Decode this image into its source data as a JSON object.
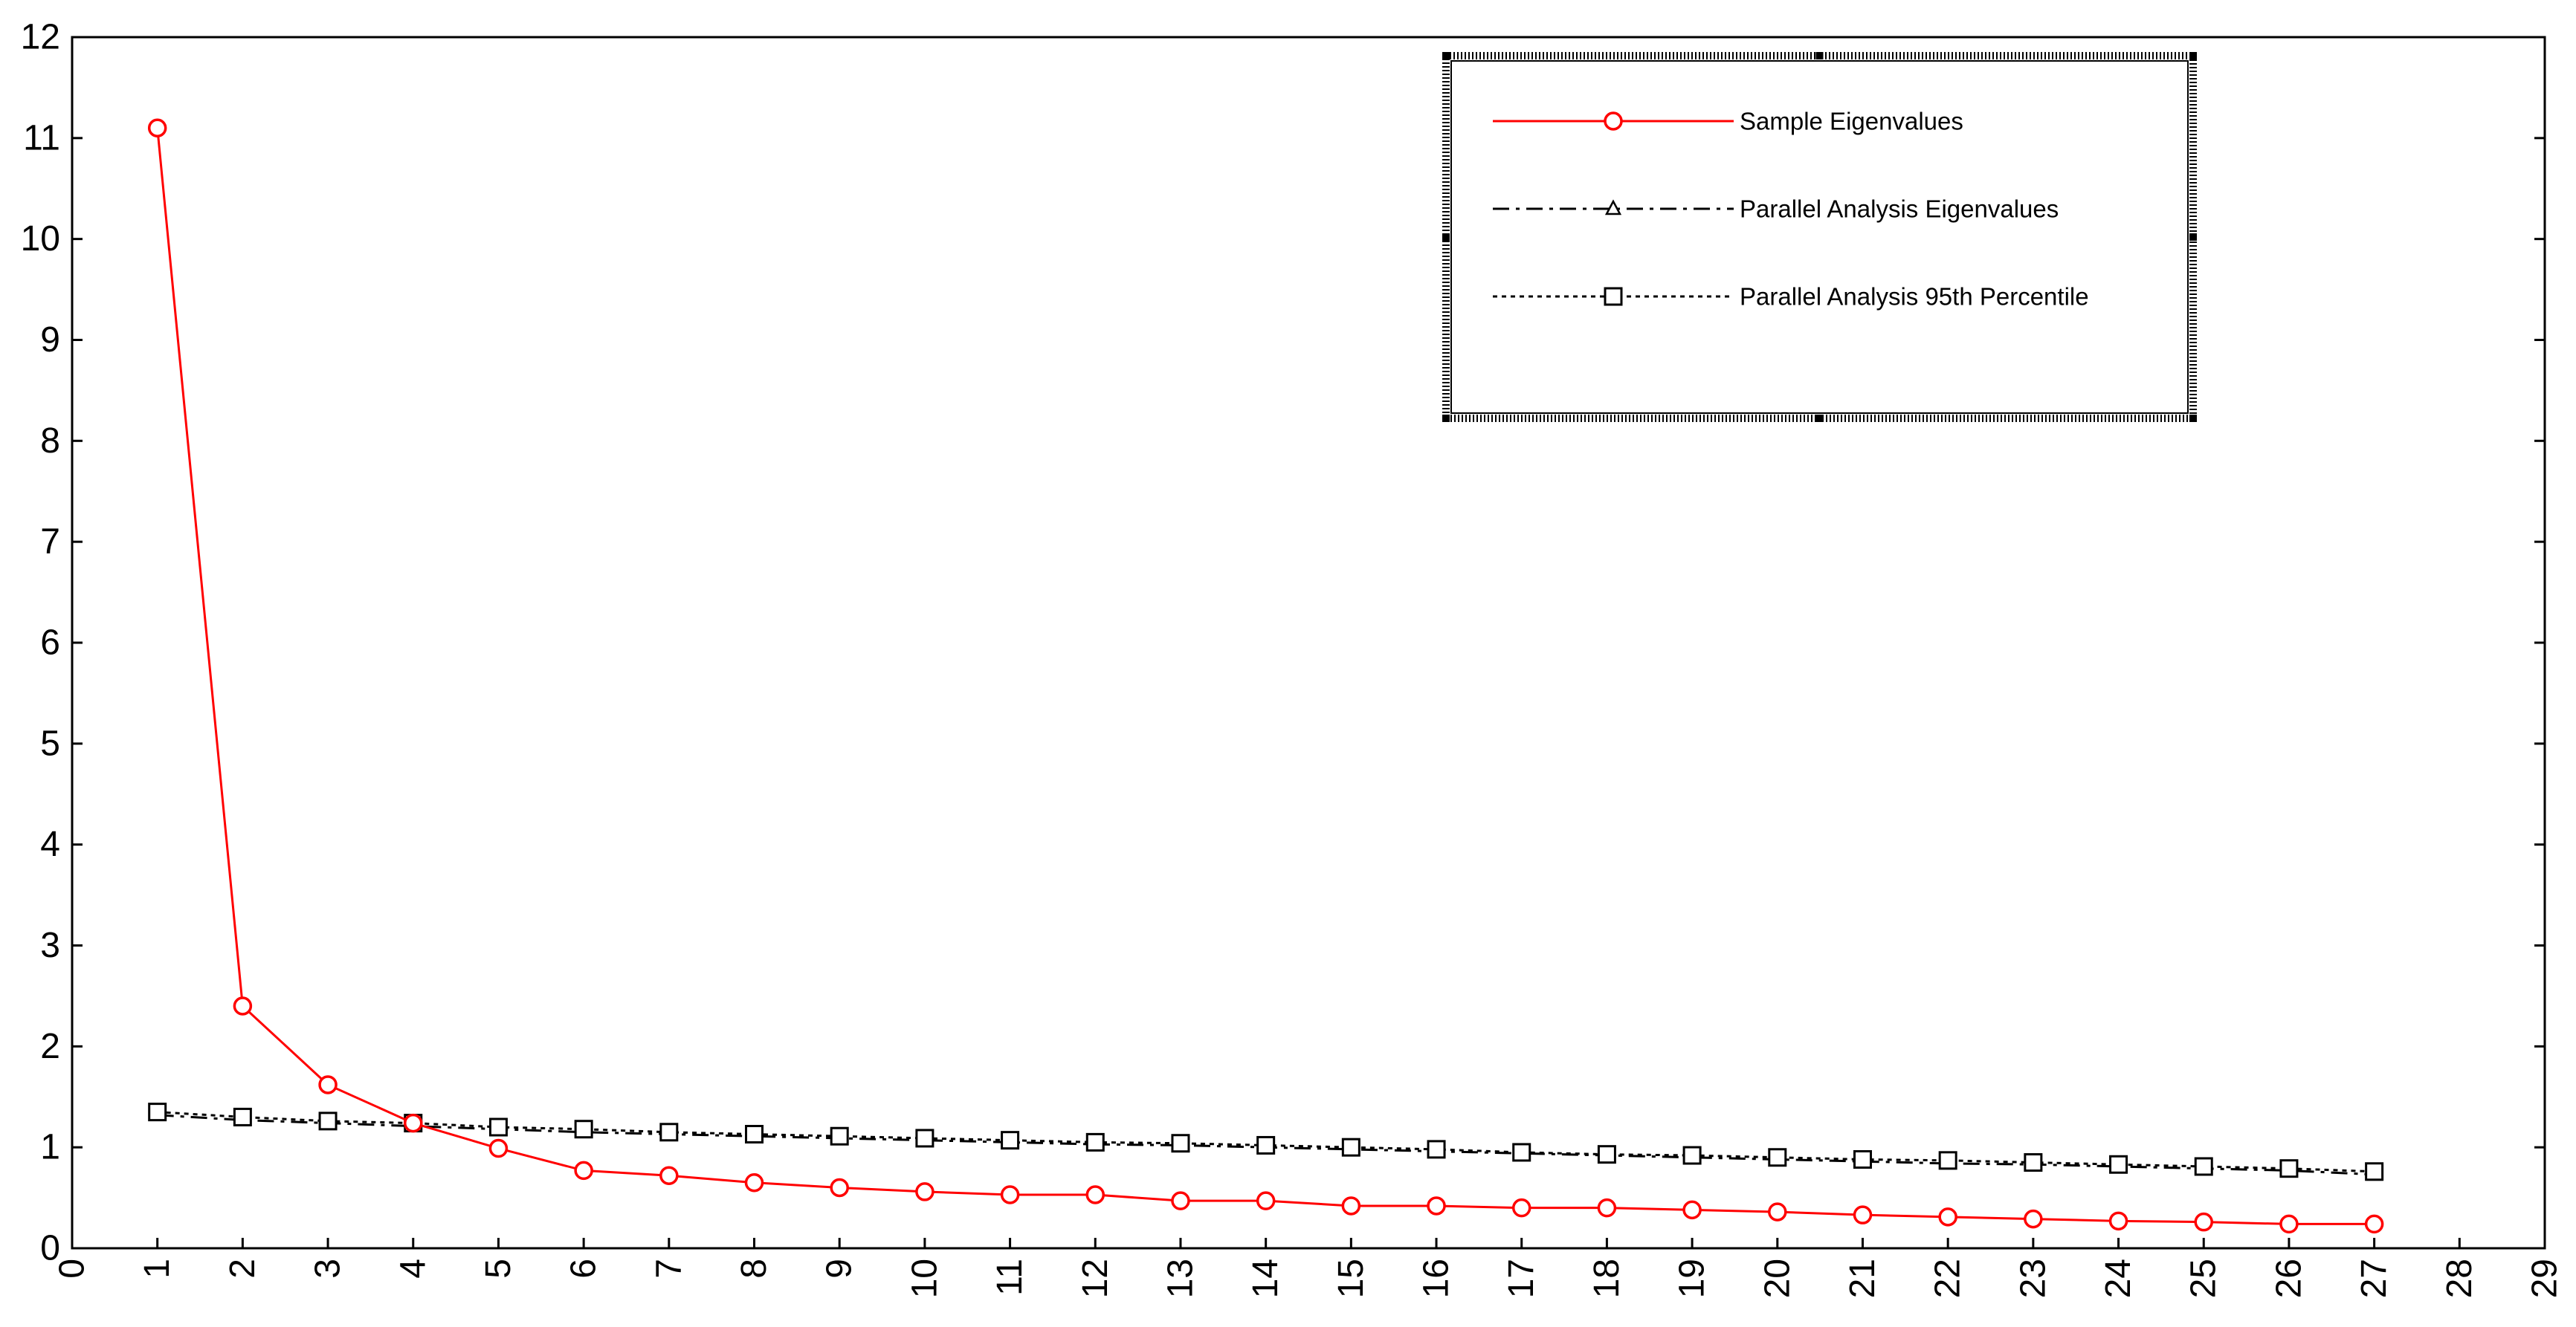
{
  "chart_data": {
    "type": "line",
    "title": "",
    "xlabel": "",
    "ylabel": "",
    "xlim": [
      0,
      29
    ],
    "ylim": [
      0,
      12
    ],
    "x_ticks": [
      0,
      1,
      2,
      3,
      4,
      5,
      6,
      7,
      8,
      9,
      10,
      11,
      12,
      13,
      14,
      15,
      16,
      17,
      18,
      19,
      20,
      21,
      22,
      23,
      24,
      25,
      26,
      27,
      28,
      29
    ],
    "y_ticks": [
      0,
      1,
      2,
      3,
      4,
      5,
      6,
      7,
      8,
      9,
      10,
      11,
      12
    ],
    "x_tick_labels": [
      "0",
      "1",
      "2",
      "3",
      "4",
      "5",
      "6",
      "7",
      "8",
      "9",
      "10",
      "11",
      "12",
      "13",
      "14",
      "15",
      "16",
      "17",
      "18",
      "19",
      "20",
      "21",
      "22",
      "23",
      "24",
      "25",
      "26",
      "27",
      "28",
      "29"
    ],
    "y_tick_labels": [
      "0",
      "1",
      "2",
      "3",
      "4",
      "5",
      "6",
      "7",
      "8",
      "9",
      "10",
      "11",
      "12"
    ],
    "x_tick_orientation": "vertical",
    "grid": false,
    "legend_position": "top-right",
    "x": [
      1,
      2,
      3,
      4,
      5,
      6,
      7,
      8,
      9,
      10,
      11,
      12,
      13,
      14,
      15,
      16,
      17,
      18,
      19,
      20,
      21,
      22,
      23,
      24,
      25,
      26,
      27
    ],
    "series": [
      {
        "name": "Sample Eigenvalues",
        "color": "#ff0000",
        "line_style": "solid",
        "marker": "circle",
        "values": [
          11.1,
          2.4,
          1.62,
          1.24,
          0.99,
          0.77,
          0.72,
          0.65,
          0.6,
          0.56,
          0.53,
          0.53,
          0.47,
          0.47,
          0.42,
          0.42,
          0.4,
          0.4,
          0.38,
          0.36,
          0.33,
          0.31,
          0.29,
          0.27,
          0.26,
          0.24,
          0.24
        ]
      },
      {
        "name": "Parallel Analysis Eigenvalues",
        "color": "#000000",
        "line_style": "dash-dot",
        "marker": "triangle",
        "values": [
          1.32,
          1.27,
          1.24,
          1.21,
          1.18,
          1.15,
          1.13,
          1.11,
          1.09,
          1.07,
          1.05,
          1.03,
          1.02,
          1.0,
          0.98,
          0.96,
          0.94,
          0.92,
          0.9,
          0.88,
          0.86,
          0.84,
          0.83,
          0.81,
          0.79,
          0.77,
          0.73
        ]
      },
      {
        "name": "Parallel Analysis 95th Percentile",
        "color": "#000000",
        "line_style": "dotted",
        "marker": "square",
        "values": [
          1.35,
          1.3,
          1.26,
          1.24,
          1.2,
          1.18,
          1.15,
          1.13,
          1.11,
          1.09,
          1.07,
          1.05,
          1.04,
          1.02,
          1.0,
          0.98,
          0.95,
          0.93,
          0.92,
          0.9,
          0.88,
          0.87,
          0.85,
          0.83,
          0.81,
          0.79,
          0.76
        ]
      }
    ]
  }
}
